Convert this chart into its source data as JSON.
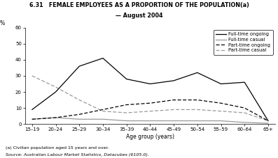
{
  "title_line1": "6.31   FEMALE EMPLOYEES AS A PROPORTION OF THE POPULATION(a)",
  "title_line2": "— August 2004",
  "xlabel": "Age group (years)",
  "ylabel": "%",
  "footnote1": "(a) Civilian population aged 15 years and over.",
  "footnote2": "Source: Australian Labour Market Statistics, Datacubes (6105.0).",
  "age_groups": [
    "15–19",
    "20–24",
    "25–29",
    "30–34",
    "35–39",
    "40–44",
    "45–49",
    "50–54",
    "55–59",
    "60–64",
    "65+"
  ],
  "fulltime_ongoing": [
    9,
    20,
    36,
    41,
    28,
    25,
    27,
    32,
    25,
    26,
    2
  ],
  "fulltime_casual": [
    3,
    4,
    3,
    3,
    2,
    2,
    2,
    2,
    2,
    1,
    0.5
  ],
  "parttime_ongoing": [
    3,
    4,
    6,
    9,
    12,
    13,
    15,
    15,
    13,
    10,
    2
  ],
  "parttime_casual": [
    30,
    23,
    15,
    8,
    7,
    8,
    9,
    9,
    8,
    7,
    2
  ],
  "ylim": [
    0,
    60
  ],
  "yticks": [
    0,
    10,
    20,
    30,
    40,
    50,
    60
  ],
  "legend_labels": [
    "Full-time ongoing",
    "Full-time casual",
    "Part-time ongoing",
    "Part-time casual"
  ],
  "color_ft_ongoing": "#000000",
  "color_ft_casual": "#999999",
  "color_pt_ongoing": "#000000",
  "color_pt_casual": "#999999",
  "background_color": "#ffffff"
}
